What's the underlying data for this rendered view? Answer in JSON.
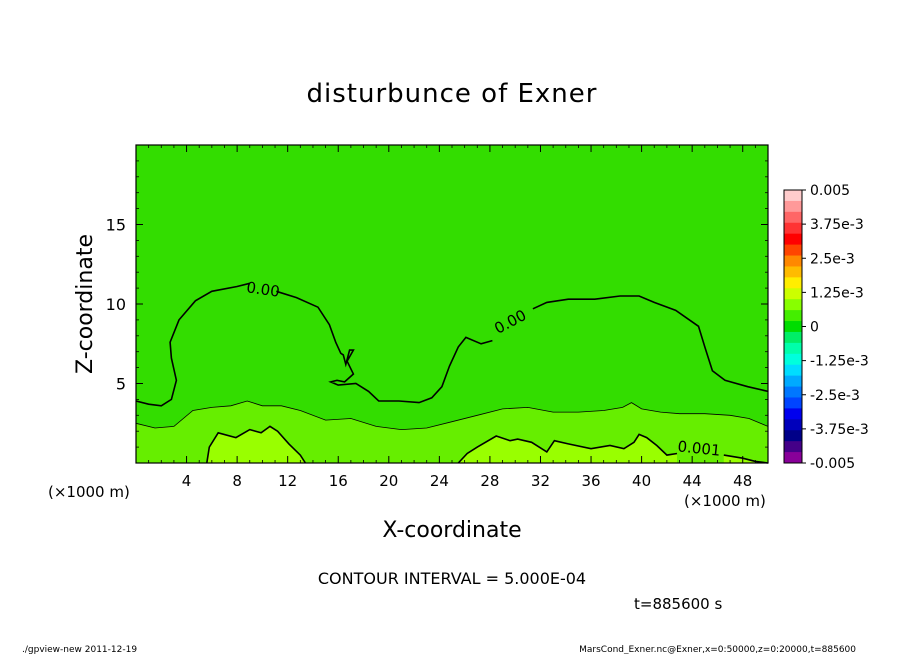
{
  "chart_data": {
    "type": "heatmap",
    "title": "disturbunce of Exner",
    "xlabel": "X-coordinate",
    "ylabel": "Z-coordinate",
    "x_unit_left": "(×1000 m)",
    "x_unit_right": "(×1000 m)",
    "xlim": [
      0,
      50
    ],
    "ylim": [
      0,
      20
    ],
    "x_ticks": [
      4,
      8,
      12,
      16,
      20,
      24,
      28,
      32,
      36,
      40,
      44,
      48
    ],
    "x_tick_labels": [
      "4",
      "8",
      "12",
      "16",
      "20",
      "24",
      "28",
      "32",
      "36",
      "40",
      "44",
      "48"
    ],
    "y_ticks": [
      5,
      10,
      15
    ],
    "y_tick_labels": [
      "5",
      "10",
      "15"
    ],
    "colorbar": {
      "range": [
        -0.005,
        0.005
      ],
      "tick_labels": [
        "0.005",
        "3.75e-3",
        "2.5e-3",
        "1.25e-3",
        "0",
        "-1.25e-3",
        "-2.5e-3",
        "-3.75e-3",
        "-0.005"
      ],
      "colors": [
        "#ffcccc",
        "#ff9999",
        "#ff6666",
        "#ff3333",
        "#ff0000",
        "#ff4400",
        "#ff8800",
        "#ffbb00",
        "#ffee00",
        "#ccff00",
        "#88ff00",
        "#44ee00",
        "#00dd00",
        "#00ee66",
        "#00ffaa",
        "#00ffdd",
        "#00ddff",
        "#00aaff",
        "#0077ff",
        "#0044ff",
        "#0000ee",
        "#0000bb",
        "#000088",
        "#440088",
        "#880099"
      ]
    },
    "contour_labels": [
      {
        "text": "0.00",
        "x": 10.0,
        "z": 10.6
      },
      {
        "text": "0.00",
        "x": 29.8,
        "z": 8.6
      },
      {
        "text": "0.001",
        "x": 44.5,
        "z": 0.6
      }
    ],
    "contour_zero": [
      [
        0,
        3.9
      ],
      [
        1,
        3.7
      ],
      [
        2,
        3.6
      ],
      [
        2.8,
        4.0
      ],
      [
        3.2,
        5.2
      ],
      [
        2.8,
        6.6
      ],
      [
        2.7,
        7.6
      ],
      [
        3.4,
        9.0
      ],
      [
        4.7,
        10.2
      ],
      [
        6.0,
        10.8
      ],
      [
        8.0,
        11.1
      ],
      [
        9.0,
        11.3
      ]
    ],
    "contour_zero_b": [
      [
        11.1,
        10.8
      ],
      [
        12.7,
        10.4
      ],
      [
        14.4,
        9.8
      ],
      [
        15.3,
        8.7
      ],
      [
        15.8,
        7.6
      ],
      [
        16.2,
        6.9
      ],
      [
        16.4,
        6.8
      ],
      [
        16.6,
        6.2
      ],
      [
        16.9,
        7.1
      ],
      [
        17.2,
        7.1
      ],
      [
        16.7,
        6.4
      ],
      [
        17.2,
        5.6
      ],
      [
        16.5,
        5.1
      ],
      [
        15.9,
        5.2
      ],
      [
        15.4,
        5.1
      ],
      [
        16.0,
        4.9
      ],
      [
        17.4,
        5.0
      ],
      [
        18.4,
        4.5
      ],
      [
        19.2,
        3.9
      ],
      [
        20.8,
        3.9
      ],
      [
        22.4,
        3.8
      ],
      [
        23.4,
        4.1
      ],
      [
        24.2,
        4.8
      ],
      [
        24.8,
        6.1
      ],
      [
        25.5,
        7.3
      ],
      [
        26.1,
        7.9
      ],
      [
        27.3,
        7.5
      ],
      [
        28.2,
        7.7
      ]
    ],
    "contour_zero_c": [
      [
        31.4,
        9.7
      ],
      [
        32.5,
        10.1
      ],
      [
        34.2,
        10.3
      ],
      [
        36.3,
        10.3
      ],
      [
        38.3,
        10.5
      ],
      [
        39.8,
        10.5
      ],
      [
        41.0,
        10.1
      ],
      [
        42.7,
        9.6
      ],
      [
        44.5,
        8.6
      ],
      [
        45.0,
        7.3
      ],
      [
        45.6,
        5.8
      ],
      [
        46.6,
        5.2
      ],
      [
        48.4,
        4.8
      ],
      [
        50,
        4.5
      ]
    ],
    "contour_001": [
      [
        5.6,
        0
      ],
      [
        5.8,
        1.0
      ],
      [
        6.5,
        1.9
      ],
      [
        7.9,
        1.6
      ],
      [
        9.0,
        2.1
      ],
      [
        9.9,
        1.9
      ],
      [
        10.6,
        2.3
      ],
      [
        11.2,
        2.0
      ],
      [
        12.1,
        1.2
      ],
      [
        13.0,
        0.5
      ],
      [
        13.4,
        0
      ]
    ],
    "contour_001_b": [
      [
        25.5,
        0
      ],
      [
        26.2,
        0.6
      ],
      [
        27.0,
        1.0
      ],
      [
        28.5,
        1.7
      ],
      [
        29.6,
        1.4
      ],
      [
        30.2,
        1.5
      ],
      [
        31.3,
        1.3
      ],
      [
        32.5,
        0.7
      ],
      [
        33.1,
        1.4
      ],
      [
        34.2,
        1.2
      ],
      [
        36.0,
        0.9
      ],
      [
        37.5,
        1.1
      ],
      [
        38.6,
        0.9
      ],
      [
        39.4,
        1.3
      ],
      [
        39.8,
        1.8
      ],
      [
        40.4,
        1.6
      ],
      [
        41.2,
        1.1
      ],
      [
        42.0,
        0.5
      ],
      [
        42.8,
        0.6
      ]
    ],
    "contour_001_c": [
      [
        46.5,
        0.5
      ],
      [
        48.0,
        0.3
      ],
      [
        49.0,
        0.1
      ],
      [
        50,
        0
      ]
    ],
    "contour_0005": [
      [
        0,
        2.5
      ],
      [
        1.5,
        2.2
      ],
      [
        3.0,
        2.3
      ],
      [
        4.5,
        3.3
      ],
      [
        6.0,
        3.5
      ],
      [
        7.5,
        3.6
      ],
      [
        8.8,
        3.9
      ],
      [
        10.0,
        3.6
      ],
      [
        11.5,
        3.6
      ],
      [
        13.0,
        3.3
      ],
      [
        15.0,
        2.7
      ],
      [
        17.0,
        2.8
      ],
      [
        19.0,
        2.3
      ],
      [
        21.0,
        2.1
      ],
      [
        23.0,
        2.2
      ],
      [
        25.0,
        2.6
      ],
      [
        27.0,
        3.0
      ],
      [
        29.0,
        3.4
      ],
      [
        31.0,
        3.5
      ],
      [
        33.0,
        3.2
      ],
      [
        35.0,
        3.2
      ],
      [
        37.0,
        3.3
      ],
      [
        38.5,
        3.5
      ],
      [
        39.2,
        3.8
      ],
      [
        40.0,
        3.4
      ],
      [
        41.5,
        3.2
      ],
      [
        43.0,
        3.1
      ],
      [
        45.0,
        3.1
      ],
      [
        47.0,
        3.0
      ],
      [
        48.5,
        2.8
      ],
      [
        50,
        2.3
      ]
    ],
    "footer_interval": "CONTOUR INTERVAL = 5.000E-04",
    "time_label": "t=885600 s"
  },
  "footer": {
    "left": "./gpview-new   2011-12-19",
    "right": "MarsCond_Exner.nc@Exner,x=0:50000,z=0:20000,t=885600"
  }
}
